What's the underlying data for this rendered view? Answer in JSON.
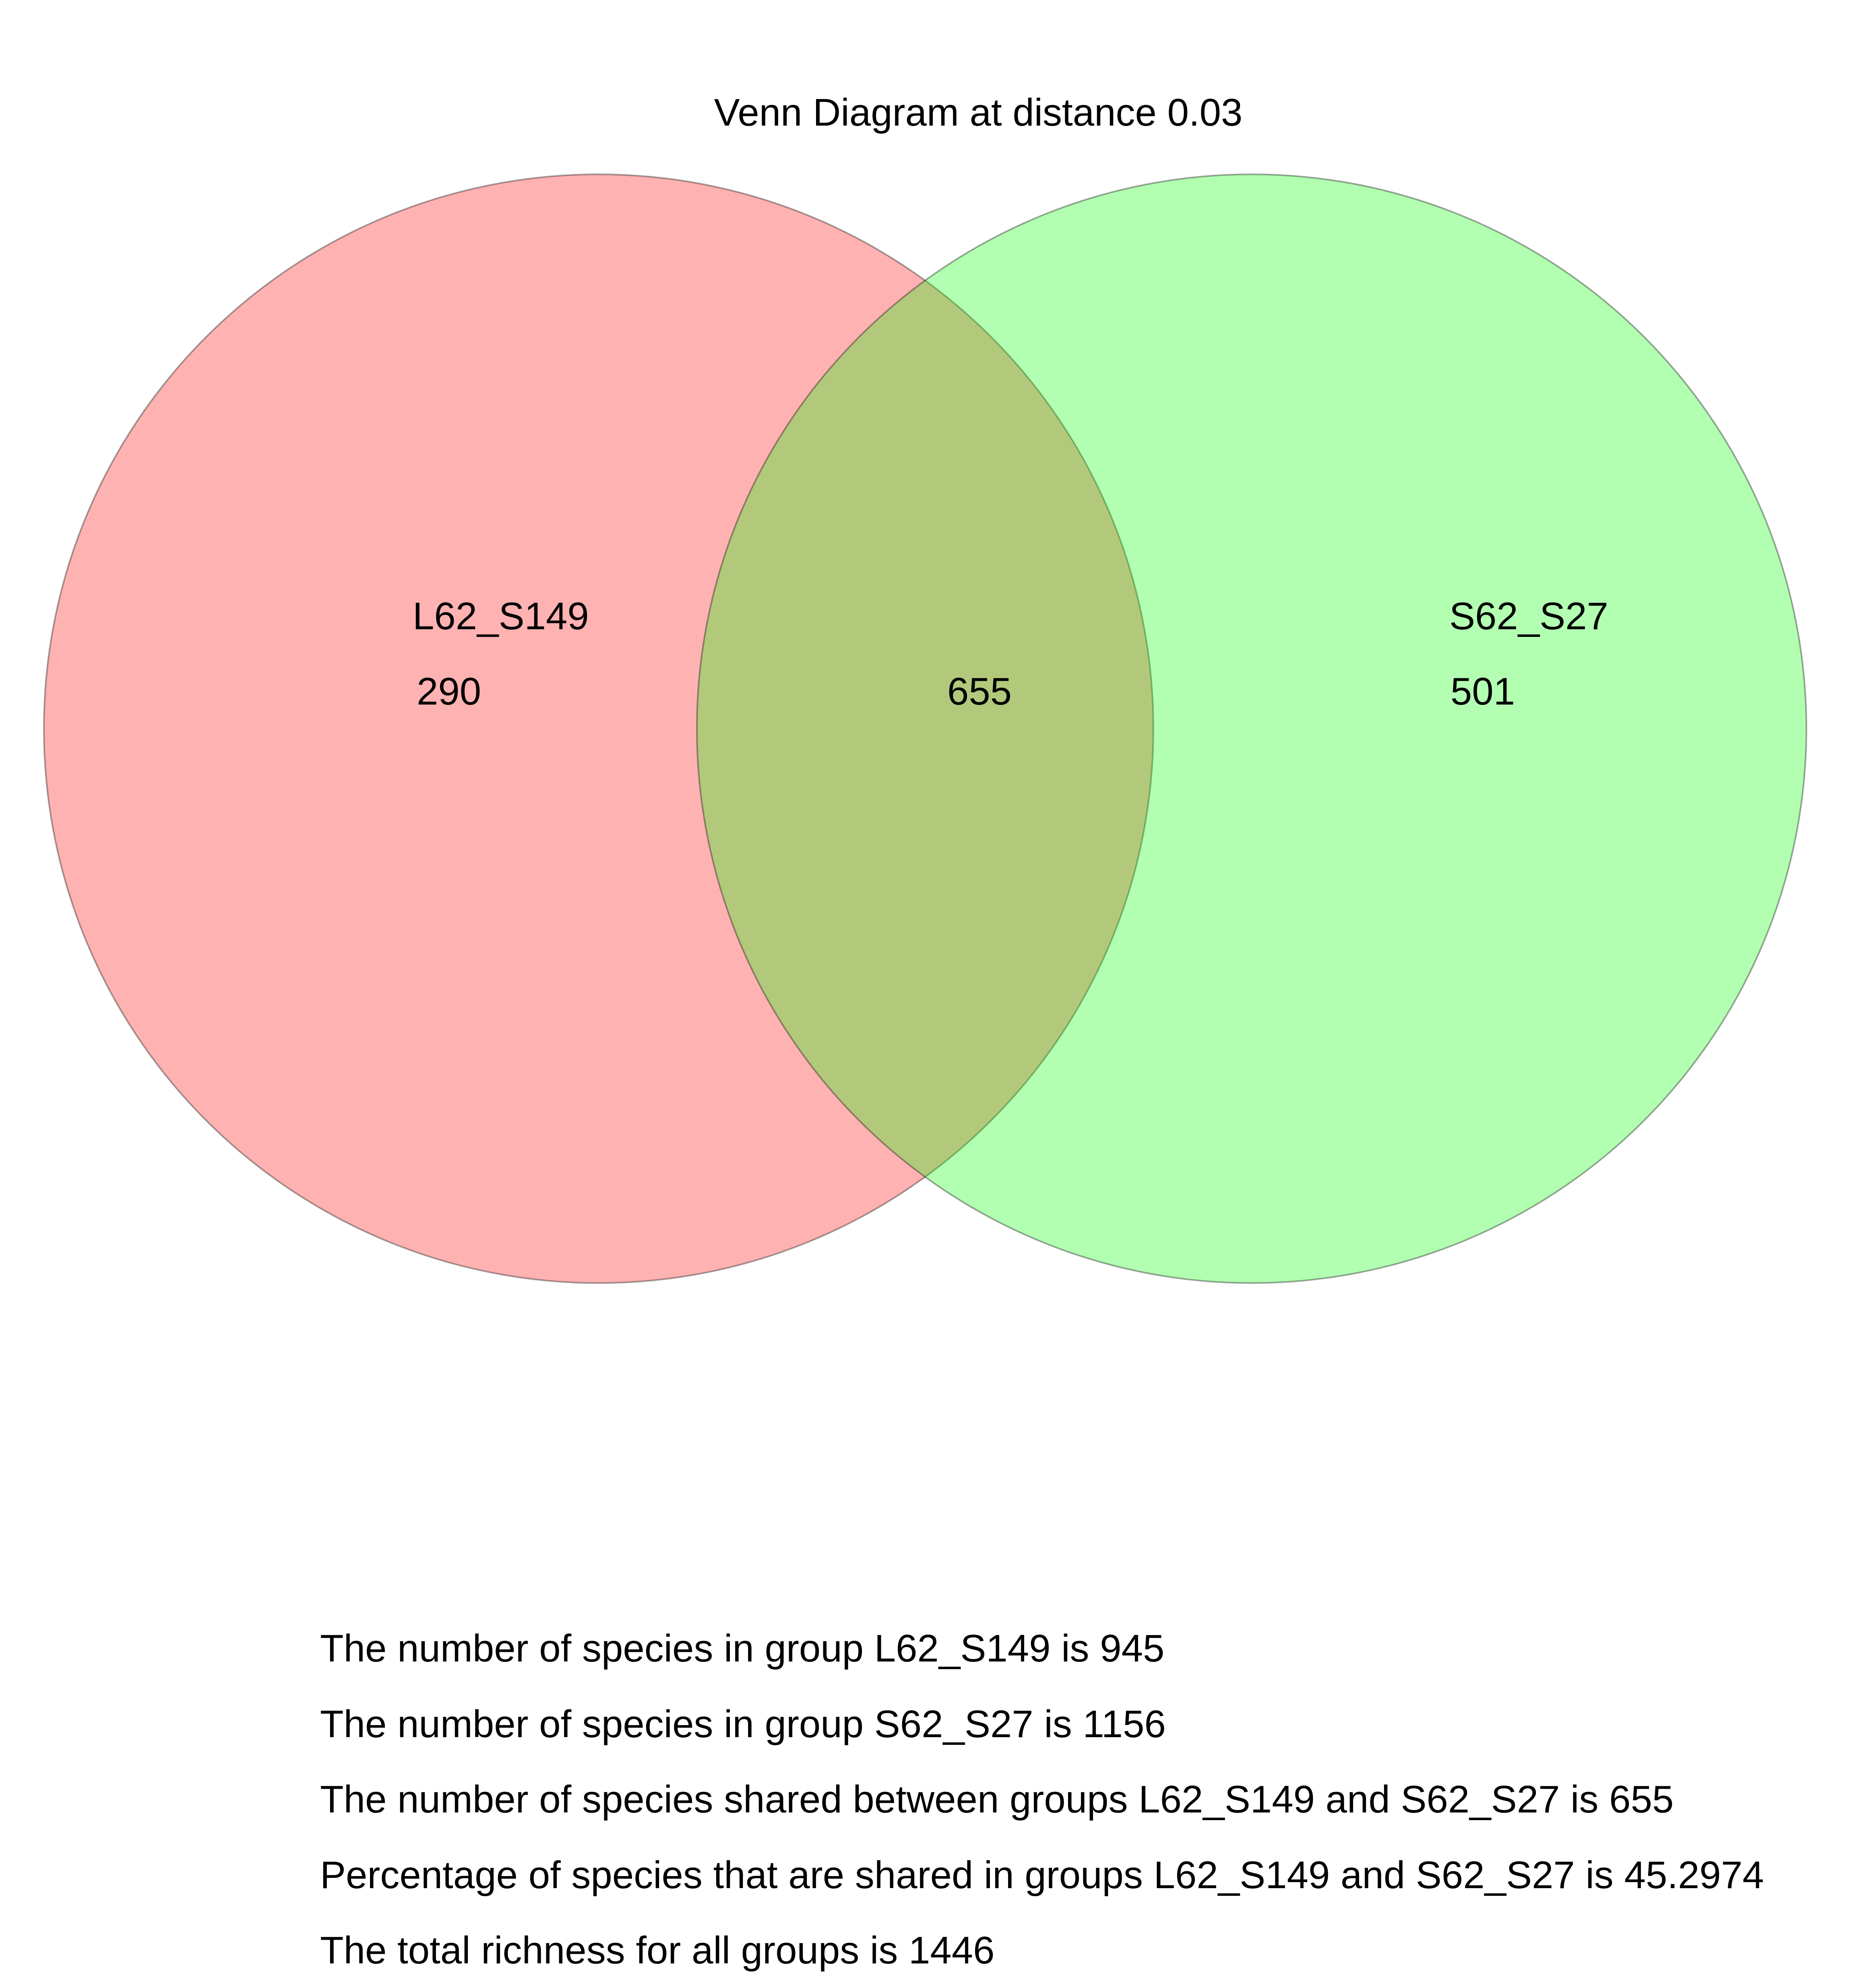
{
  "title": "Venn Diagram at distance 0.03",
  "colors": {
    "group_a_fill": "#ff0000",
    "group_b_fill": "#00ff00",
    "outline": "#000000",
    "background": "#ffffff"
  },
  "venn": {
    "group_a": {
      "label": "L62_S149",
      "unique_count": "290",
      "total": 945
    },
    "group_b": {
      "label": "S62_S27",
      "unique_count": "501",
      "total": 1156
    },
    "shared_count": "655"
  },
  "summary": {
    "line1": "The number of species in group L62_S149 is 945",
    "line2": "The number of species in group S62_S27 is 1156",
    "line3": "The number of species shared between groups L62_S149 and S62_S27 is 655",
    "line4": "Percentage of species that are shared in groups L62_S149 and S62_S27 is 45.2974",
    "line5": "The total richness for all groups is 1446"
  }
}
